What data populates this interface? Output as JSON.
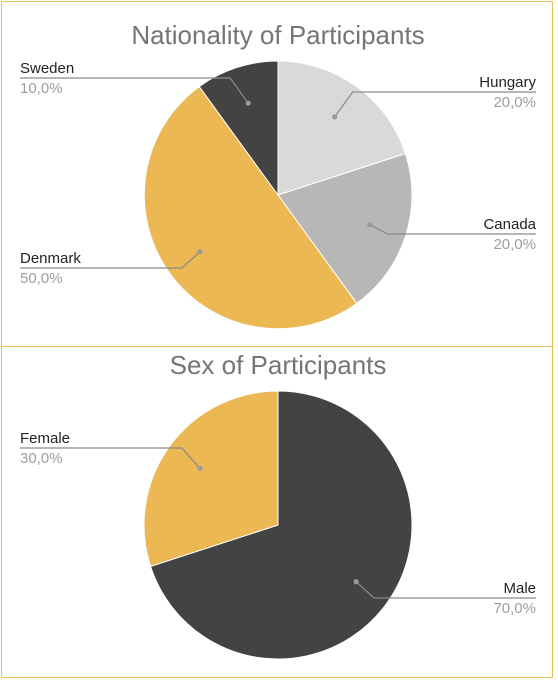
{
  "chart_data": [
    {
      "type": "pie",
      "title": "Nationality of Participants",
      "slices": [
        {
          "label": "Hungary",
          "value": 20.0,
          "display": "20,0%",
          "color": "#d9d9d9"
        },
        {
          "label": "Canada",
          "value": 20.0,
          "display": "20,0%",
          "color": "#b7b7b7"
        },
        {
          "label": "Denmark",
          "value": 50.0,
          "display": "50,0%",
          "color": "#ebb854"
        },
        {
          "label": "Sweden",
          "value": 10.0,
          "display": "10,0%",
          "color": "#434343"
        }
      ],
      "start_angle": 0,
      "direction": "clockwise",
      "legend": "labeled-callouts"
    },
    {
      "type": "pie",
      "title": "Sex of Participants",
      "slices": [
        {
          "label": "Male",
          "value": 70.0,
          "display": "70,0%",
          "color": "#434343"
        },
        {
          "label": "Female",
          "value": 30.0,
          "display": "30,0%",
          "color": "#ebb854"
        }
      ],
      "start_angle": 0,
      "direction": "clockwise",
      "legend": "labeled-callouts"
    }
  ]
}
